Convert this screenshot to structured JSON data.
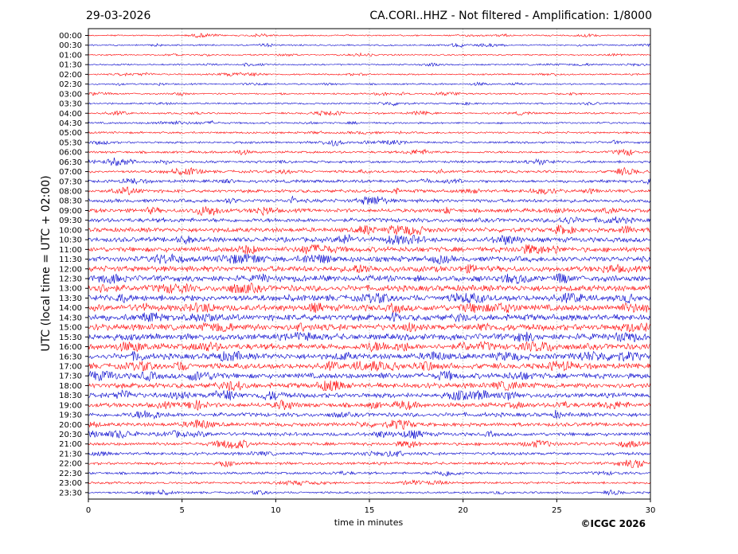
{
  "header": {
    "date": "29-03-2026",
    "title": "CA.CORI..HHZ - Not filtered - Amplification: 1/8000"
  },
  "footer": {
    "copyright": "©ICGC 2026"
  },
  "chart_data": {
    "type": "line",
    "xlabel": "time in minutes",
    "ylabel": "UTC (local time = UTC + 02:00)",
    "xlim": [
      0,
      30
    ],
    "x_ticks": [
      "0",
      "5",
      "10",
      "15",
      "20",
      "25",
      "30"
    ],
    "grid": true,
    "row_labels": [
      "00:00",
      "00:30",
      "01:00",
      "01:30",
      "02:00",
      "02:30",
      "03:00",
      "03:30",
      "04:00",
      "04:30",
      "05:00",
      "05:30",
      "06:00",
      "06:30",
      "07:00",
      "07:30",
      "08:00",
      "08:30",
      "09:00",
      "09:30",
      "10:00",
      "10:30",
      "11:00",
      "11:30",
      "12:00",
      "12:30",
      "13:00",
      "13:30",
      "14:00",
      "14:30",
      "15:00",
      "15:30",
      "16:00",
      "16:30",
      "17:00",
      "17:30",
      "18:00",
      "18:30",
      "19:00",
      "19:30",
      "20:00",
      "20:30",
      "21:00",
      "21:30",
      "22:00",
      "22:30",
      "23:00",
      "23:30"
    ],
    "row_colors": [
      "#ff0000",
      "#0000cc"
    ]
  }
}
